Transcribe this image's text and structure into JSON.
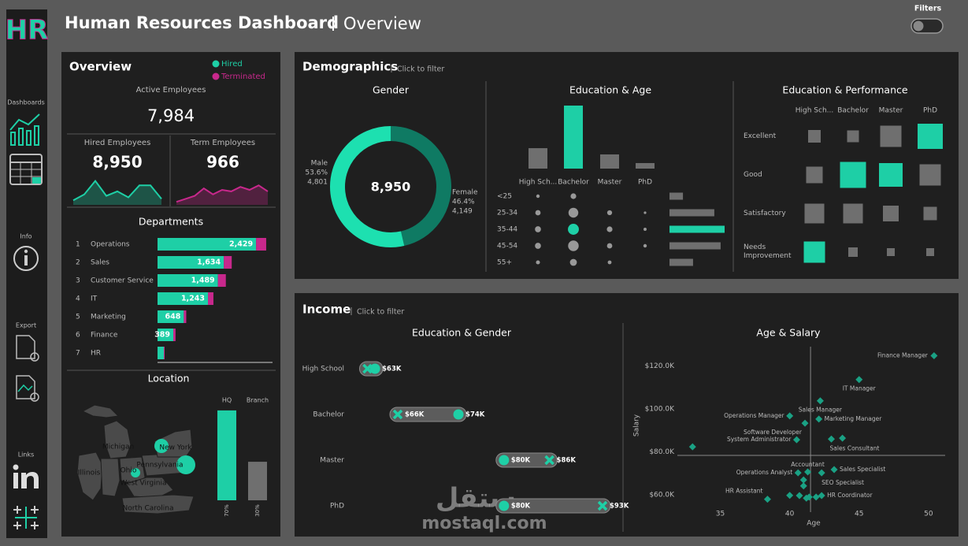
{
  "header": {
    "logo": "HR",
    "title": "Human Resources Dashboard",
    "subtitle": "Overview",
    "filters": "Filters"
  },
  "sidebar": {
    "sections": [
      "Dashboards",
      "Info",
      "Export",
      "Links"
    ]
  },
  "overview": {
    "title": "Overview",
    "legend": [
      {
        "name": "Hired",
        "color": "#1ecfa6"
      },
      {
        "name": "Terminated",
        "color": "#c8288c"
      }
    ],
    "active": {
      "label": "Active Employees",
      "value": "7,984"
    },
    "trend_ylim": [
      0,
      100
    ],
    "hired": {
      "label": "Hired Employees",
      "value": "8,950",
      "trend": [
        15,
        35,
        80,
        30,
        45,
        25,
        65,
        65,
        20
      ]
    },
    "terminated": {
      "label": "Term Employees",
      "value": "966",
      "trend": [
        10,
        20,
        30,
        55,
        35,
        50,
        45,
        60,
        50,
        65,
        45
      ]
    },
    "departments": {
      "title": "Departments",
      "ranks": [
        1,
        2,
        3,
        4,
        5,
        6,
        7
      ],
      "names": [
        "Operations",
        "Sales",
        "Customer Service",
        "IT",
        "Marketing",
        "Finance",
        "HR"
      ],
      "hired": [
        2429,
        1634,
        1489,
        1243,
        648,
        389,
        155
      ],
      "hired_labels": [
        "2,429",
        "1,634",
        "1,489",
        "1,243",
        "648",
        "389",
        null
      ],
      "terminated": [
        250,
        195,
        195,
        135,
        60,
        55,
        20
      ]
    },
    "location": {
      "title": "Location",
      "states": [
        "Michigan",
        "New York",
        "Illinois",
        "Ohio",
        "Pennsylvania",
        "West Virginia",
        "North Carolina"
      ],
      "categories": [
        "HQ",
        "Branch"
      ],
      "values": [
        70,
        30
      ],
      "value_labels": [
        "70%",
        "30%"
      ],
      "colors": [
        "#1ecfa6",
        "#6f6f6f"
      ]
    }
  },
  "demographics": {
    "title": "Demographics",
    "hint": "Click to filter",
    "gender": {
      "title": "Gender",
      "total": "8,950",
      "categories": [
        "Male",
        "Female"
      ],
      "values": [
        53.6,
        46.4
      ],
      "value_labels": [
        "53.6%",
        "46.4%"
      ],
      "counts": [
        "4,801",
        "4,149"
      ],
      "colors": [
        "#1de0b0",
        "#0f7a63"
      ]
    },
    "education_age": {
      "title": "Education & Age",
      "education": [
        "High Sch...",
        "Bachelor",
        "Master",
        "PhD"
      ],
      "education_values": [
        1770,
        5460,
        1230,
        480
      ],
      "education_colors": [
        "#6f6f6f",
        "#1ecfa6",
        "#6f6f6f",
        "#6f6f6f"
      ],
      "ages": [
        "<25",
        "25-34",
        "35-44",
        "45-54",
        "55+"
      ],
      "age_values": [
        640,
        2130,
        2620,
        2430,
        1120
      ],
      "age_colors": [
        "#6f6f6f",
        "#6f6f6f",
        "#1ecfa6",
        "#6f6f6f",
        "#6f6f6f"
      ],
      "matrix": [
        [
          150,
          400,
          null,
          null
        ],
        [
          350,
          1200,
          300,
          80
        ],
        [
          450,
          1500,
          400,
          120
        ],
        [
          450,
          1400,
          350,
          150
        ],
        [
          200,
          600,
          180,
          null
        ]
      ],
      "matrix_colors": [
        [
          "#999",
          "#999",
          "#999",
          "#999"
        ],
        [
          "#999",
          "#999",
          "#999",
          "#999"
        ],
        [
          "#999",
          "#1ecfa6",
          "#999",
          "#999"
        ],
        [
          "#999",
          "#999",
          "#999",
          "#999"
        ],
        [
          "#999",
          "#999",
          "#999",
          "#999"
        ]
      ]
    },
    "education_performance": {
      "title": "Education & Performance",
      "ratings": [
        "Excellent",
        "Good",
        "Satisfactory",
        "Needs Improvement"
      ],
      "matrix": [
        [
          256,
          225,
          729,
          1024
        ],
        [
          441,
          1089,
          900,
          729
        ],
        [
          625,
          625,
          400,
          289
        ],
        [
          729,
          144,
          100,
          100
        ]
      ],
      "colors": [
        [
          "#6f6f6f",
          "#6f6f6f",
          "#6f6f6f",
          "#1ecfa6"
        ],
        [
          "#6f6f6f",
          "#1ecfa6",
          "#1ecfa6",
          "#6f6f6f"
        ],
        [
          "#6f6f6f",
          "#6f6f6f",
          "#6f6f6f",
          "#6f6f6f"
        ],
        [
          "#1ecfa6",
          "#6f6f6f",
          "#6f6f6f",
          "#6f6f6f"
        ]
      ]
    }
  },
  "income": {
    "title": "Income",
    "hint": "Click to filter",
    "education_gender": {
      "title": "Education & Gender",
      "categories": [
        "High School",
        "Bachelor",
        "Master",
        "PhD"
      ],
      "color": "#1ecfa6",
      "series": [
        {
          "marker": "circle",
          "values": [
            63000,
            74000,
            80000,
            80000
          ],
          "value_labels": [
            "$63K",
            "$74K",
            "$80K",
            "$80K"
          ]
        },
        {
          "marker": "cross",
          "values": [
            62000,
            66000,
            86000,
            93000
          ],
          "value_labels": [
            null,
            "$66K",
            "$86K",
            "$93K"
          ]
        }
      ]
    },
    "age_salary": {
      "title": "Age & Salary",
      "type": "scatter",
      "xlabel": "Age",
      "ylabel": "Salary",
      "color": "#1aa184",
      "xlim": [
        28.5,
        51.2
      ],
      "ylim": [
        52000,
        129000
      ],
      "xticks": [
        35,
        40,
        45,
        50
      ],
      "yticks": [
        {
          "value": 60000,
          "label": "$60.0K"
        },
        {
          "value": 80000,
          "label": "$80.0K"
        },
        {
          "value": 100000,
          "label": "$100.0K"
        },
        {
          "value": 120000,
          "label": "$120.0K"
        }
      ],
      "reference_lines": {
        "x": 41.5,
        "y": 78400
      },
      "x": [
        50.4,
        45.0,
        40.0,
        42.2,
        42.1,
        41.1,
        40.5,
        43.0,
        43.8,
        33.0,
        41.3,
        40.6,
        43.2,
        42.3,
        42.3,
        38.4,
        41.0,
        41.0,
        40.7,
        41.4,
        41.9,
        40.0,
        41.2
      ],
      "values": [
        124800,
        113700,
        96800,
        103800,
        95300,
        93400,
        85700,
        86000,
        86400,
        82400,
        70700,
        70300,
        71800,
        70300,
        59700,
        58000,
        67000,
        64200,
        59700,
        59000,
        59000,
        59800,
        58500
      ],
      "labels": [
        "Finance Manager",
        "IT Manager",
        "Operations Manager",
        "Sales Manager",
        "Marketing Manager",
        "Software Developer",
        "System Administrator",
        "Sales Consultant",
        null,
        null,
        "Accountant",
        "Operations Analyst",
        "Sales Specialist",
        "SEO Specialist",
        "HR Coordinator",
        "HR Assistant",
        null,
        null,
        null,
        null,
        null,
        null,
        null
      ]
    }
  },
  "watermark": {
    "arabic": "مستقل",
    "latin": "mostaql.com"
  }
}
